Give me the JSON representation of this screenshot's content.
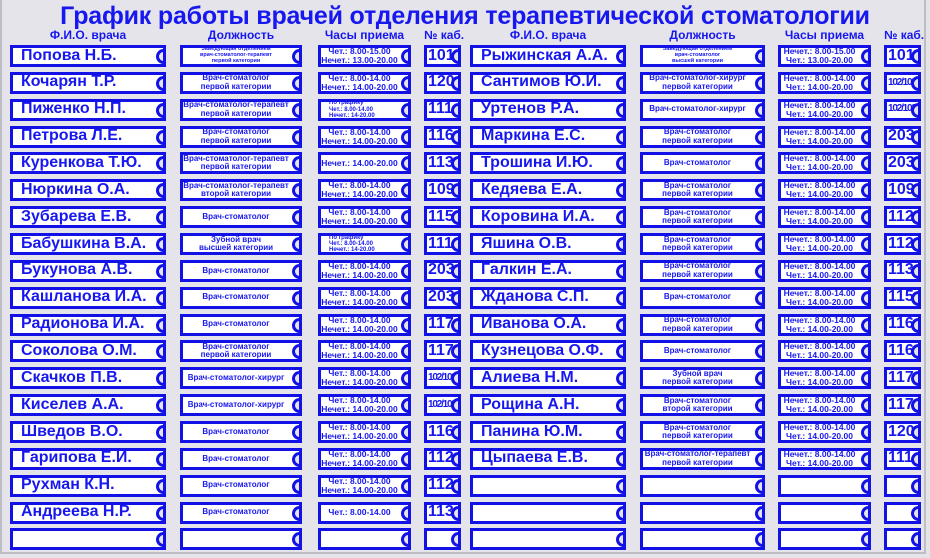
{
  "title": "График работы врачей отделения терапевтической стоматологии",
  "headers": {
    "name": "Ф.И.О. врача",
    "position": "Должность",
    "hours": "Часы приема",
    "cabinet": "№ каб."
  },
  "colors": {
    "accent": "#1717f0",
    "background": "#e4e4ea"
  },
  "left": [
    {
      "name": "Попова Н.Б.",
      "position": [
        "Заведующая отделением",
        "врач-стоматолог-терапевт",
        "первой категории"
      ],
      "hours": [
        "Чет.: 8.00-15.00",
        "Нечет.: 13.00-20.00"
      ],
      "cabinet": "101"
    },
    {
      "name": "Кочарян Т.Р.",
      "position": [
        "Врач-стоматолог",
        "первой категории"
      ],
      "hours": [
        "Чет.: 8.00-14.00",
        "Нечет.: 14.00-20.00"
      ],
      "cabinet": "120"
    },
    {
      "name": "Пиженко Н.П.",
      "position": [
        "Врач-стоматолог-терапевт",
        "первой категории"
      ],
      "hours": [
        "По графику",
        "Чет.: 8.00-14.00",
        "Нечет.: 14-20.00"
      ],
      "cabinet": "111"
    },
    {
      "name": "Петрова Л.Е.",
      "position": [
        "Врач-стоматолог",
        "первой категории"
      ],
      "hours": [
        "Чет.: 8.00-14.00",
        "Нечет.: 14.00-20.00"
      ],
      "cabinet": "116"
    },
    {
      "name": "Куренкова Т.Ю.",
      "position": [
        "Врач-стоматолог-терапевт",
        "первой категории"
      ],
      "hours": [
        "Нечет.: 14.00-20.00"
      ],
      "cabinet": "113"
    },
    {
      "name": "Нюркина О.А.",
      "position": [
        "Врач-стоматолог-терапевт",
        "второй категории"
      ],
      "hours": [
        "Чет.: 8.00-14.00",
        "Нечет.: 14.00-20.00"
      ],
      "cabinet": "109"
    },
    {
      "name": "Зубарева Е.В.",
      "position": [
        "Врач-стоматолог"
      ],
      "hours": [
        "Чет.: 8.00-14.00",
        "Нечет.: 14.00-20.00"
      ],
      "cabinet": "115"
    },
    {
      "name": "Бабушкина В.А.",
      "position": [
        "Зубной врач",
        "высшей категории"
      ],
      "hours": [
        "По графику",
        "Чет.: 8.00-14.00",
        "Нечет.: 14-20.00"
      ],
      "cabinet": "111"
    },
    {
      "name": "Букунова А.В.",
      "position": [
        "Врач-стоматолог"
      ],
      "hours": [
        "Чет.: 8.00-14.00",
        "Нечет.: 14.00-20.00"
      ],
      "cabinet": "203"
    },
    {
      "name": "Кашланова И.А.",
      "position": [
        "Врач-стоматолог"
      ],
      "hours": [
        "Чет.: 8.00-14.00",
        "Нечет.: 14.00-20.00"
      ],
      "cabinet": "203"
    },
    {
      "name": "Радионова И.А.",
      "position": [
        "Врач-стоматолог"
      ],
      "hours": [
        "Чет.: 8.00-14.00",
        "Нечет.: 14.00-20.00"
      ],
      "cabinet": "117"
    },
    {
      "name": "Соколова О.М.",
      "position": [
        "Врач-стоматолог",
        "первой категории"
      ],
      "hours": [
        "Чет.: 8.00-14.00",
        "Нечет.: 14.00-20.00"
      ],
      "cabinet": "117"
    },
    {
      "name": "Скачков П.В.",
      "position": [
        "Врач-стоматолог-хирург"
      ],
      "hours": [
        "Чет.: 8.00-14.00",
        "Нечет.: 14.00-20.00"
      ],
      "cabinet": "102/103"
    },
    {
      "name": "Киселев А.А.",
      "position": [
        "Врач-стоматолог-хирург"
      ],
      "hours": [
        "Чет.: 8.00-14.00",
        "Нечет.: 14.00-20.00"
      ],
      "cabinet": "102/103"
    },
    {
      "name": "Шведов В.О.",
      "position": [
        "Врач-стоматолог"
      ],
      "hours": [
        "Чет.: 8.00-14.00",
        "Нечет.: 14.00-20.00"
      ],
      "cabinet": "116"
    },
    {
      "name": "Гарипова Е.И.",
      "position": [
        "Врач-стоматолог"
      ],
      "hours": [
        "Чет.: 8.00-14.00",
        "Нечет.: 14.00-20.00"
      ],
      "cabinet": "112"
    },
    {
      "name": "Рухман К.Н.",
      "position": [
        "Врач-стоматолог"
      ],
      "hours": [
        "Чет.: 8.00-14.00",
        "Нечет.: 14.00-20.00"
      ],
      "cabinet": "112"
    },
    {
      "name": "Андреева Н.Р.",
      "position": [
        "Врач-стоматолог"
      ],
      "hours": [
        "Чет.: 8.00-14.00"
      ],
      "cabinet": "113"
    },
    {
      "name": "",
      "position": [],
      "hours": [],
      "cabinet": ""
    }
  ],
  "right": [
    {
      "name": "Рыжинская А.А.",
      "position": [
        "Заведующая отделением",
        "врач-стоматолог",
        "высшей категории"
      ],
      "hours": [
        "Нечет.: 8.00-15.00",
        "Чет.: 13.00-20.00"
      ],
      "cabinet": "101"
    },
    {
      "name": "Сантимов Ю.И.",
      "position": [
        "Врач-стоматолог-хирург",
        "первой категории"
      ],
      "hours": [
        "Нечет.: 8.00-14.00",
        "Чет.: 14.00-20.00"
      ],
      "cabinet": "102/103"
    },
    {
      "name": "Уртенов Р.А.",
      "position": [
        "Врач-стоматолог-хирург"
      ],
      "hours": [
        "Нечет.: 8.00-14.00",
        "Чет.: 14.00-20.00"
      ],
      "cabinet": "102/103"
    },
    {
      "name": "Маркина Е.С.",
      "position": [
        "Врач-стоматолог",
        "первой категории"
      ],
      "hours": [
        "Нечет.: 8.00-14.00",
        "Чет.: 14.00-20.00"
      ],
      "cabinet": "203"
    },
    {
      "name": "Трошина И.Ю.",
      "position": [
        "Врач-стоматолог"
      ],
      "hours": [
        "Нечет.: 8.00-14.00",
        "Чет.: 14.00-20.00"
      ],
      "cabinet": "203"
    },
    {
      "name": "Кедяева Е.А.",
      "position": [
        "Врач-стоматолог",
        "первой категории"
      ],
      "hours": [
        "Нечет.: 8.00-14.00",
        "Чет.: 14.00-20.00"
      ],
      "cabinet": "109"
    },
    {
      "name": "Коровина И.А.",
      "position": [
        "Врач-стоматолог",
        "первой категории"
      ],
      "hours": [
        "Нечет.: 8.00-14.00",
        "Чет.: 14.00-20.00"
      ],
      "cabinet": "112"
    },
    {
      "name": "Яшина О.В.",
      "position": [
        "Врач-стоматолог",
        "первой категории"
      ],
      "hours": [
        "Нечет.: 8.00-14.00",
        "Чет.: 14.00-20.00"
      ],
      "cabinet": "112"
    },
    {
      "name": "Галкин Е.А.",
      "position": [
        "Врач-стоматолог",
        "первой категории"
      ],
      "hours": [
        "Нечет.: 8.00-14.00",
        "Чет.: 14.00-20.00"
      ],
      "cabinet": "113"
    },
    {
      "name": "Жданова С.П.",
      "position": [
        "Врач-стоматолог"
      ],
      "hours": [
        "Нечет.: 8.00-14.00",
        "Чет.: 14.00-20.00"
      ],
      "cabinet": "115"
    },
    {
      "name": "Иванова О.А.",
      "position": [
        "Врач-стоматолог",
        "первой категории"
      ],
      "hours": [
        "Нечет.: 8.00-14.00",
        "Чет.: 14.00-20.00"
      ],
      "cabinet": "116"
    },
    {
      "name": "Кузнецова О.Ф.",
      "position": [
        "Врач-стоматолог"
      ],
      "hours": [
        "Нечет.: 8.00-14.00",
        "Чет.: 14.00-20.00"
      ],
      "cabinet": "116"
    },
    {
      "name": "Алиева Н.М.",
      "position": [
        "Зубной врач",
        "первой категории"
      ],
      "hours": [
        "Нечет.: 8.00-14.00",
        "Чет.: 14.00-20.00"
      ],
      "cabinet": "117"
    },
    {
      "name": "Рощина А.Н.",
      "position": [
        "Врач-стоматолог",
        "второй категории"
      ],
      "hours": [
        "Нечет.: 8.00-14.00",
        "Чет.: 14.00-20.00"
      ],
      "cabinet": "117"
    },
    {
      "name": "Панина Ю.М.",
      "position": [
        "Врач-стоматолог",
        "первой категории"
      ],
      "hours": [
        "Нечет.: 8.00-14.00",
        "Чет.: 14.00-20.00"
      ],
      "cabinet": "120"
    },
    {
      "name": "Цыпаева Е.В.",
      "position": [
        "Врач-стоматолог-терапевт",
        "первой категории"
      ],
      "hours": [
        "Нечет.: 8.00-14.00",
        "Чет.: 14.00-20.00"
      ],
      "cabinet": "111"
    },
    {
      "name": "",
      "position": [],
      "hours": [],
      "cabinet": ""
    },
    {
      "name": "",
      "position": [],
      "hours": [],
      "cabinet": ""
    },
    {
      "name": "",
      "position": [],
      "hours": [],
      "cabinet": ""
    }
  ]
}
